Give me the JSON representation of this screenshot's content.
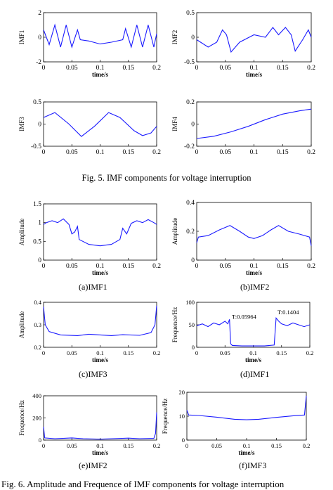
{
  "figures": {
    "fig5_caption": "Fig. 5.   IMF components for voltage interruption",
    "fig6_caption": "Fig. 6.   Amplitude and Frequence of IMF components for voltage interruption",
    "sub_captions": [
      "(a)IMF1",
      "(b)IMF2",
      "(c)IMF3",
      "(d)IMF1",
      "(e)IMF2",
      "(f)IMF3"
    ]
  },
  "chart_data": [
    {
      "type": "line",
      "title": "",
      "xlabel": "time/s",
      "ylabel": "IMF1",
      "xlim": [
        0,
        0.2
      ],
      "ylim": [
        -2,
        2
      ],
      "xticks": [
        "0",
        "0.05",
        "0.1",
        "0.15",
        "0.2"
      ],
      "yticks": [
        "-2",
        "0",
        "2"
      ],
      "series": [
        {
          "color": "#1a1aff",
          "points": [
            [
              0,
              0.6
            ],
            [
              0.01,
              -0.6
            ],
            [
              0.02,
              1.0
            ],
            [
              0.03,
              -0.8
            ],
            [
              0.04,
              1.0
            ],
            [
              0.05,
              -0.8
            ],
            [
              0.06,
              0.6
            ],
            [
              0.065,
              -0.2
            ],
            [
              0.08,
              -0.3
            ],
            [
              0.1,
              -0.55
            ],
            [
              0.12,
              -0.4
            ],
            [
              0.14,
              -0.2
            ],
            [
              0.145,
              0.7
            ],
            [
              0.155,
              -0.8
            ],
            [
              0.165,
              1.0
            ],
            [
              0.175,
              -0.8
            ],
            [
              0.185,
              1.0
            ],
            [
              0.195,
              -0.8
            ],
            [
              0.2,
              0.3
            ]
          ]
        }
      ]
    },
    {
      "type": "line",
      "title": "",
      "xlabel": "time/s",
      "ylabel": "IMF2",
      "xlim": [
        0,
        0.2
      ],
      "ylim": [
        -0.5,
        0.5
      ],
      "xticks": [
        "0",
        "0.05",
        "0.1",
        "0.15",
        "0.2"
      ],
      "yticks": [
        "-0.5",
        "0",
        "0.5"
      ],
      "series": [
        {
          "color": "#1a1aff",
          "points": [
            [
              0,
              -0.05
            ],
            [
              0.02,
              -0.2
            ],
            [
              0.035,
              -0.1
            ],
            [
              0.045,
              0.15
            ],
            [
              0.052,
              0.05
            ],
            [
              0.06,
              -0.3
            ],
            [
              0.075,
              -0.1
            ],
            [
              0.1,
              0.05
            ],
            [
              0.12,
              0.0
            ],
            [
              0.133,
              0.2
            ],
            [
              0.143,
              0.05
            ],
            [
              0.155,
              0.2
            ],
            [
              0.165,
              0.05
            ],
            [
              0.172,
              -0.28
            ],
            [
              0.185,
              -0.05
            ],
            [
              0.195,
              0.15
            ],
            [
              0.2,
              0.0
            ]
          ]
        }
      ]
    },
    {
      "type": "line",
      "title": "",
      "xlabel": "",
      "ylabel": "IMF3",
      "xlim": [
        0,
        0.2
      ],
      "ylim": [
        -0.5,
        0.5
      ],
      "xticks": [
        "0",
        "0.05",
        "0.1",
        "0.15",
        "0.2"
      ],
      "yticks": [
        "-0.5",
        "0",
        "0.5"
      ],
      "series": [
        {
          "color": "#1a1aff",
          "points": [
            [
              0,
              0.15
            ],
            [
              0.02,
              0.26
            ],
            [
              0.045,
              0.0
            ],
            [
              0.067,
              -0.28
            ],
            [
              0.09,
              -0.05
            ],
            [
              0.115,
              0.26
            ],
            [
              0.135,
              0.15
            ],
            [
              0.16,
              -0.15
            ],
            [
              0.175,
              -0.26
            ],
            [
              0.19,
              -0.2
            ],
            [
              0.2,
              -0.05
            ]
          ]
        }
      ]
    },
    {
      "type": "line",
      "title": "",
      "xlabel": "",
      "ylabel": "IMF4",
      "xlim": [
        0,
        0.2
      ],
      "ylim": [
        -0.2,
        0.2
      ],
      "xticks": [
        "0",
        "0.05",
        "0.1",
        "0.15",
        "0.2"
      ],
      "yticks": [
        "-0.2",
        "0",
        "0.2"
      ],
      "series": [
        {
          "color": "#1a1aff",
          "points": [
            [
              0,
              -0.13
            ],
            [
              0.03,
              -0.11
            ],
            [
              0.06,
              -0.07
            ],
            [
              0.09,
              -0.02
            ],
            [
              0.12,
              0.04
            ],
            [
              0.15,
              0.09
            ],
            [
              0.18,
              0.12
            ],
            [
              0.2,
              0.135
            ]
          ]
        }
      ]
    },
    {
      "type": "line",
      "title": "",
      "xlabel": "time/s",
      "ylabel": "Amplitude",
      "xlim": [
        0,
        0.2
      ],
      "ylim": [
        0,
        1.5
      ],
      "xticks": [
        "0",
        "0.05",
        "0.1",
        "0.15",
        "0.2"
      ],
      "yticks": [
        "0",
        "0.5",
        "1",
        "1.5"
      ],
      "series": [
        {
          "color": "#1a1aff",
          "points": [
            [
              0,
              0.95
            ],
            [
              0.005,
              1.0
            ],
            [
              0.015,
              1.05
            ],
            [
              0.025,
              1.0
            ],
            [
              0.035,
              1.1
            ],
            [
              0.045,
              0.95
            ],
            [
              0.05,
              0.7
            ],
            [
              0.055,
              0.75
            ],
            [
              0.06,
              0.9
            ],
            [
              0.063,
              0.55
            ],
            [
              0.08,
              0.42
            ],
            [
              0.1,
              0.38
            ],
            [
              0.12,
              0.42
            ],
            [
              0.135,
              0.55
            ],
            [
              0.14,
              0.85
            ],
            [
              0.147,
              0.7
            ],
            [
              0.155,
              0.98
            ],
            [
              0.165,
              1.05
            ],
            [
              0.175,
              1.0
            ],
            [
              0.185,
              1.08
            ],
            [
              0.195,
              1.0
            ],
            [
              0.2,
              0.95
            ]
          ]
        }
      ]
    },
    {
      "type": "line",
      "title": "",
      "xlabel": "time/s",
      "ylabel": "Amplitude",
      "xlim": [
        0,
        0.2
      ],
      "ylim": [
        0,
        0.4
      ],
      "xticks": [
        "0",
        "0.05",
        "0.1",
        "0.15",
        "0.2"
      ],
      "yticks": [
        "0",
        "0.2",
        "0.4"
      ],
      "series": [
        {
          "color": "#1a1aff",
          "points": [
            [
              0,
              0.12
            ],
            [
              0.003,
              0.16
            ],
            [
              0.02,
              0.17
            ],
            [
              0.04,
              0.21
            ],
            [
              0.058,
              0.24
            ],
            [
              0.075,
              0.2
            ],
            [
              0.09,
              0.16
            ],
            [
              0.1,
              0.15
            ],
            [
              0.115,
              0.17
            ],
            [
              0.13,
              0.21
            ],
            [
              0.143,
              0.24
            ],
            [
              0.16,
              0.2
            ],
            [
              0.18,
              0.18
            ],
            [
              0.197,
              0.16
            ],
            [
              0.2,
              0.1
            ]
          ]
        }
      ]
    },
    {
      "type": "line",
      "title": "",
      "xlabel": "time/s",
      "ylabel": "Amplitude",
      "xlim": [
        0,
        0.2
      ],
      "ylim": [
        0.2,
        0.4
      ],
      "xticks": [
        "0",
        "0.05",
        "0.1",
        "0.15",
        "0.2"
      ],
      "yticks": [
        "0.2",
        "0.3",
        "0.4"
      ],
      "series": [
        {
          "color": "#1a1aff",
          "points": [
            [
              0,
              0.38
            ],
            [
              0.003,
              0.3
            ],
            [
              0.01,
              0.27
            ],
            [
              0.03,
              0.255
            ],
            [
              0.06,
              0.252
            ],
            [
              0.08,
              0.258
            ],
            [
              0.1,
              0.255
            ],
            [
              0.12,
              0.252
            ],
            [
              0.14,
              0.256
            ],
            [
              0.17,
              0.253
            ],
            [
              0.19,
              0.265
            ],
            [
              0.197,
              0.3
            ],
            [
              0.2,
              0.385
            ]
          ]
        }
      ]
    },
    {
      "type": "line",
      "title": "",
      "xlabel": "time/s",
      "ylabel": "Frequence/Hz",
      "xlim": [
        0,
        0.2
      ],
      "ylim": [
        0,
        100
      ],
      "xticks": [
        "0",
        "0.05",
        "0.1",
        "0.15",
        "0.2"
      ],
      "yticks": [
        "0",
        "50",
        "100"
      ],
      "annotations": [
        {
          "text": "T:0.05964",
          "x": 0.05964,
          "y": 60
        },
        {
          "text": "T:0.1404",
          "x": 0.1404,
          "y": 70
        }
      ],
      "series": [
        {
          "color": "#1a1aff",
          "points": [
            [
              0,
              48
            ],
            [
              0.01,
              52
            ],
            [
              0.02,
              46
            ],
            [
              0.03,
              54
            ],
            [
              0.04,
              50
            ],
            [
              0.05,
              58
            ],
            [
              0.055,
              52
            ],
            [
              0.058,
              62
            ],
            [
              0.06,
              8
            ],
            [
              0.063,
              4
            ],
            [
              0.08,
              3
            ],
            [
              0.1,
              3
            ],
            [
              0.12,
              3
            ],
            [
              0.137,
              5
            ],
            [
              0.1404,
              65
            ],
            [
              0.145,
              58
            ],
            [
              0.15,
              52
            ],
            [
              0.16,
              48
            ],
            [
              0.17,
              54
            ],
            [
              0.18,
              50
            ],
            [
              0.19,
              46
            ],
            [
              0.2,
              50
            ]
          ]
        }
      ]
    },
    {
      "type": "line",
      "title": "",
      "xlabel": "time/s",
      "ylabel": "Frequence/Hz",
      "xlim": [
        0,
        0.2
      ],
      "ylim": [
        0,
        400
      ],
      "xticks": [
        "0",
        "0.05",
        "0.1",
        "0.15",
        "0.2"
      ],
      "yticks": [
        "0",
        "200",
        "400"
      ],
      "series": [
        {
          "color": "#1a1aff",
          "points": [
            [
              0,
              120
            ],
            [
              0.002,
              20
            ],
            [
              0.02,
              12
            ],
            [
              0.05,
              20
            ],
            [
              0.07,
              12
            ],
            [
              0.1,
              8
            ],
            [
              0.13,
              14
            ],
            [
              0.15,
              18
            ],
            [
              0.17,
              12
            ],
            [
              0.195,
              15
            ],
            [
              0.198,
              60
            ],
            [
              0.2,
              250
            ]
          ]
        }
      ]
    },
    {
      "type": "line",
      "title": "",
      "xlabel": "time/s",
      "ylabel": "Frequence/Hz",
      "xlim": [
        0,
        0.2
      ],
      "ylim": [
        0,
        20
      ],
      "xticks": [
        "0",
        "0.05",
        "0.1",
        "0.15",
        "0.2"
      ],
      "yticks": [
        "0",
        "10",
        "20"
      ],
      "series": [
        {
          "color": "#1a1aff",
          "points": [
            [
              0,
              12.5
            ],
            [
              0.003,
              10.5
            ],
            [
              0.02,
              10.3
            ],
            [
              0.05,
              9.6
            ],
            [
              0.08,
              8.7
            ],
            [
              0.1,
              8.5
            ],
            [
              0.12,
              8.7
            ],
            [
              0.15,
              9.5
            ],
            [
              0.18,
              10.2
            ],
            [
              0.197,
              10.5
            ],
            [
              0.2,
              18.5
            ]
          ]
        }
      ]
    }
  ]
}
